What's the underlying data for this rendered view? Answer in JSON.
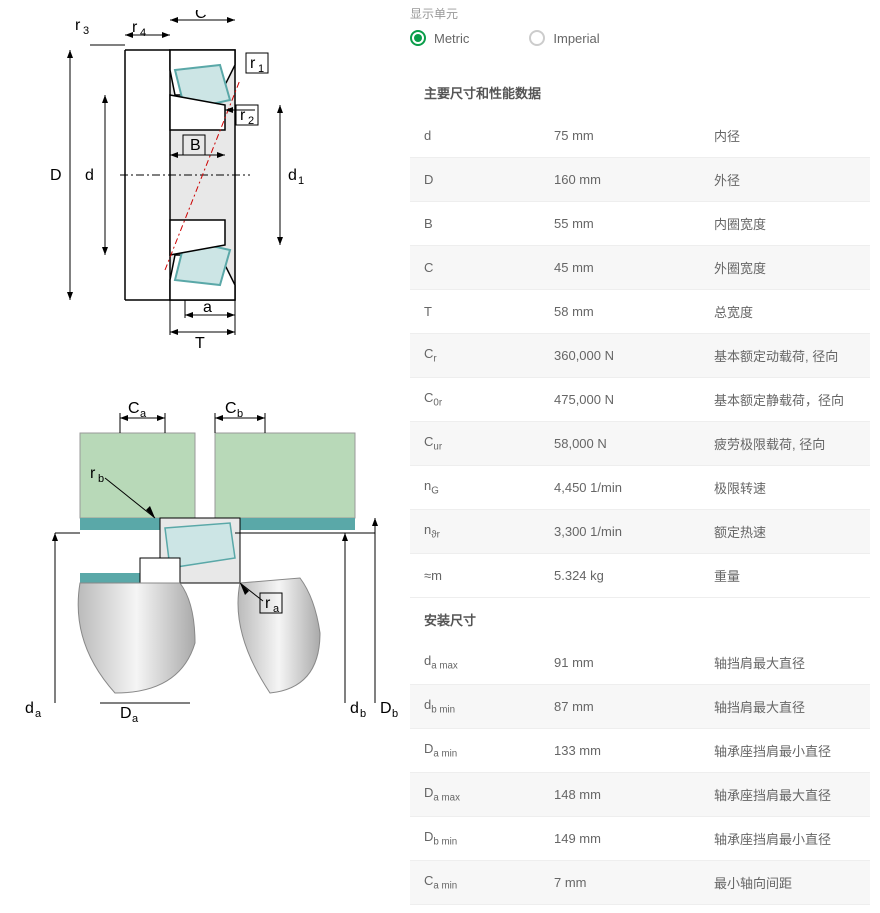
{
  "unit_selector": {
    "label": "显示单元",
    "options": [
      "Metric",
      "Imperial"
    ],
    "selected": "Metric"
  },
  "diagram1": {
    "labels": [
      "r₃",
      "r₄",
      "C",
      "r₁",
      "r₂",
      "B",
      "D",
      "d",
      "d₁",
      "a",
      "T"
    ],
    "colors": {
      "outline": "#000",
      "roller": "#5aa8a8",
      "roller_fill": "#cce5e5",
      "centerline": "#cc0000",
      "bg": "#e8e8e8"
    }
  },
  "diagram2": {
    "labels": [
      "Cₐ",
      "C_b",
      "r_b",
      "rₐ",
      "dₐ",
      "Dₐ",
      "d_b",
      "D_b"
    ],
    "colors": {
      "housing": "#b8d9b8",
      "shaft_highlight": "#5aa8a8",
      "shaft": "#d0d0d0"
    }
  },
  "sections": [
    {
      "title": "主要尺寸和性能数据",
      "rows": [
        {
          "sym": "d",
          "sub": "",
          "val": "75 mm",
          "desc": "内径"
        },
        {
          "sym": "D",
          "sub": "",
          "val": "160 mm",
          "desc": "外径"
        },
        {
          "sym": "B",
          "sub": "",
          "val": "55 mm",
          "desc": "内圈宽度"
        },
        {
          "sym": "C",
          "sub": "",
          "val": "45 mm",
          "desc": "外圈宽度"
        },
        {
          "sym": "T",
          "sub": "",
          "val": "58 mm",
          "desc": "总宽度"
        },
        {
          "sym": "C",
          "sub": "r",
          "val": "360,000 N",
          "desc": "基本额定动载荷, 径向"
        },
        {
          "sym": "C",
          "sub": "0r",
          "val": "475,000 N",
          "desc": "基本额定静载荷，径向"
        },
        {
          "sym": "C",
          "sub": "ur",
          "val": "58,000 N",
          "desc": "疲劳极限载荷, 径向"
        },
        {
          "sym": "n",
          "sub": "G",
          "val": "4,450 1/min",
          "desc": "极限转速"
        },
        {
          "sym": "n",
          "sub": "ϑr",
          "val": "3,300 1/min",
          "desc": "额定热速"
        },
        {
          "sym": "≈m",
          "sub": "",
          "val": "5.324 kg",
          "desc": "重量"
        }
      ]
    },
    {
      "title": "安装尺寸",
      "rows": [
        {
          "sym": "d",
          "sub": "a max",
          "val": "91 mm",
          "desc": "轴挡肩最大直径"
        },
        {
          "sym": "d",
          "sub": "b min",
          "val": "87 mm",
          "desc": "轴挡肩最大直径"
        },
        {
          "sym": "D",
          "sub": "a min",
          "val": "133 mm",
          "desc": "轴承座挡肩最小直径"
        },
        {
          "sym": "D",
          "sub": "a max",
          "val": "148 mm",
          "desc": "轴承座挡肩最大直径"
        },
        {
          "sym": "D",
          "sub": "b min",
          "val": "149 mm",
          "desc": "轴承座挡肩最小直径"
        },
        {
          "sym": "C",
          "sub": "a min",
          "val": "7 mm",
          "desc": "最小轴向间距"
        }
      ]
    }
  ]
}
